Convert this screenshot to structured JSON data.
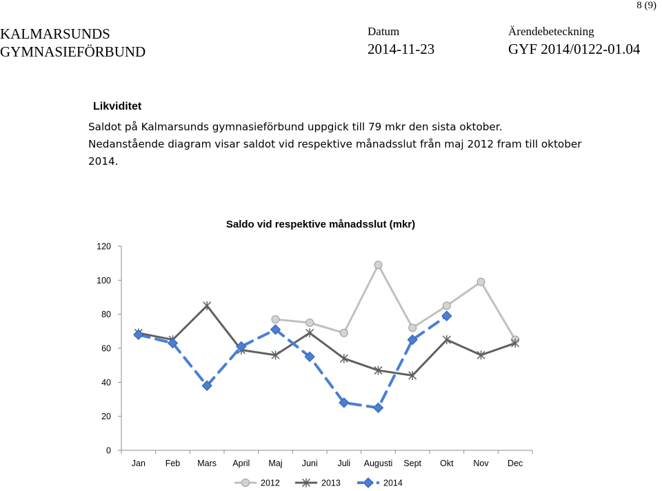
{
  "header": {
    "page_number": "8 (9)",
    "org_line1": "KALMARSUNDS",
    "org_line2": "GYMNASIEFÖRBUND",
    "date_label": "Datum",
    "date_value": "2014-11-23",
    "case_label": "Ärendebeteckning",
    "case_value": "GYF 2014/0122-01.04"
  },
  "section": {
    "heading": "Likviditet",
    "line1": "Saldot på Kalmarsunds gymnasieförbund uppgick till 79 mkr den sista oktober.",
    "line2": "Nedanstående diagram visar saldot vid respektive månadsslut från maj 2012 fram till oktober 2014."
  },
  "chart_data": {
    "type": "line",
    "title": "Saldo vid respektive månadsslut (mkr)",
    "categories": [
      "Jan",
      "Feb",
      "Mars",
      "April",
      "Maj",
      "Juni",
      "Juli",
      "Augusti",
      "Sept",
      "Okt",
      "Nov",
      "Dec"
    ],
    "ylim": [
      0,
      120
    ],
    "yticks": [
      0,
      20,
      40,
      60,
      80,
      100,
      120
    ],
    "grid": false,
    "legend_position": "bottom",
    "series": [
      {
        "name": "2012",
        "color": "#c0c0c0",
        "marker": "circle",
        "values": [
          null,
          null,
          null,
          null,
          77,
          75,
          69,
          109,
          72,
          85,
          99,
          65
        ]
      },
      {
        "name": "2013",
        "color": "#606060",
        "marker": "asterisk",
        "values": [
          69,
          65,
          85,
          59,
          56,
          69,
          54,
          47,
          44,
          65,
          56,
          63
        ]
      },
      {
        "name": "2014",
        "color": "#4a7fd4",
        "marker": "diamond",
        "dashed": true,
        "values": [
          68,
          63,
          38,
          61,
          71,
          55,
          28,
          25,
          65,
          79,
          null,
          null
        ]
      }
    ]
  }
}
